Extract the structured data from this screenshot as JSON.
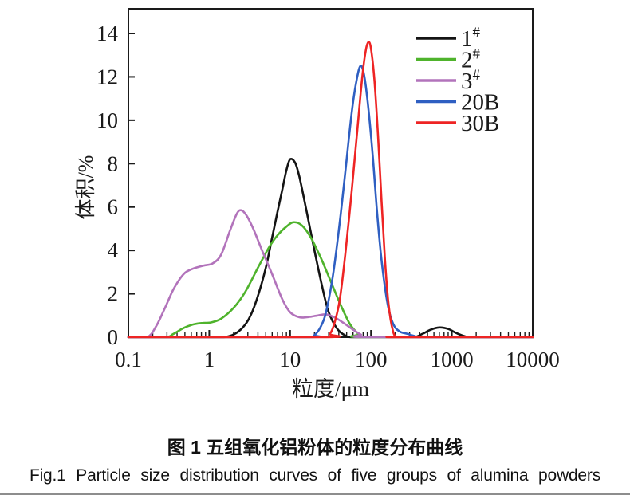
{
  "caption": {
    "chinese": "图 1  五组氧化铝粉体的粒度分布曲线",
    "english": "Fig.1  Particle  size  distribution  curves  of  five  groups  of  alumina  powders"
  },
  "colors": {
    "axis": "#1a1a1a",
    "black_series": "#141414",
    "green_series": "#4fb32c",
    "purple_series": "#b273bb",
    "blue_series": "#2f5fc2",
    "red_series": "#ee2424"
  },
  "chart_data": {
    "type": "line",
    "title": "",
    "xlabel": "粒度/μm",
    "ylabel": "体积/%",
    "x_scale": "log",
    "xlim": [
      0.1,
      10000
    ],
    "ylim": [
      0,
      15.1
    ],
    "grid": false,
    "legend_position": "top-right-inside",
    "x_ticks": [
      0.1,
      1,
      10,
      100,
      1000,
      10000
    ],
    "x_tick_labels": [
      "0.1",
      "1",
      "10",
      "100",
      "1000",
      "10000"
    ],
    "y_ticks": [
      0,
      2,
      4,
      6,
      8,
      10,
      12,
      14
    ],
    "y_tick_labels": [
      "0",
      "2",
      "4",
      "6",
      "8",
      "10",
      "12",
      "14"
    ],
    "series": [
      {
        "name": "1#",
        "key": "1",
        "label_base": "1",
        "label_sup": "#",
        "color": "#141414",
        "points": [
          [
            0.1,
            0
          ],
          [
            0.9,
            0
          ],
          [
            1.5,
            0
          ],
          [
            2,
            0.12
          ],
          [
            2.6,
            0.45
          ],
          [
            3.2,
            0.95
          ],
          [
            4,
            1.9
          ],
          [
            5,
            3.2
          ],
          [
            6,
            4.6
          ],
          [
            7,
            5.8
          ],
          [
            8,
            6.8
          ],
          [
            9,
            7.7
          ],
          [
            10,
            8.2
          ],
          [
            11.5,
            8.05
          ],
          [
            13,
            7.4
          ],
          [
            16,
            5.8
          ],
          [
            20,
            4.0
          ],
          [
            25,
            2.3
          ],
          [
            30,
            1.15
          ],
          [
            38,
            0.4
          ],
          [
            48,
            0.08
          ],
          [
            60,
            0
          ],
          [
            150,
            0
          ],
          [
            330,
            0
          ],
          [
            430,
            0.15
          ],
          [
            550,
            0.35
          ],
          [
            700,
            0.45
          ],
          [
            900,
            0.38
          ],
          [
            1150,
            0.18
          ],
          [
            1450,
            0.04
          ],
          [
            1800,
            0
          ],
          [
            10000,
            0
          ]
        ]
      },
      {
        "name": "2#",
        "key": "2",
        "label_base": "2",
        "label_sup": "#",
        "color": "#4fb32c",
        "points": [
          [
            0.1,
            0
          ],
          [
            0.28,
            0
          ],
          [
            0.36,
            0.15
          ],
          [
            0.48,
            0.42
          ],
          [
            0.62,
            0.58
          ],
          [
            0.8,
            0.65
          ],
          [
            1.05,
            0.68
          ],
          [
            1.4,
            0.85
          ],
          [
            2,
            1.35
          ],
          [
            2.8,
            2.1
          ],
          [
            4,
            3.2
          ],
          [
            5.5,
            4.15
          ],
          [
            7,
            4.7
          ],
          [
            9,
            5.1
          ],
          [
            11,
            5.3
          ],
          [
            14,
            5.15
          ],
          [
            18,
            4.6
          ],
          [
            24,
            3.65
          ],
          [
            32,
            2.55
          ],
          [
            42,
            1.5
          ],
          [
            55,
            0.6
          ],
          [
            70,
            0.15
          ],
          [
            85,
            0
          ],
          [
            10000,
            0
          ]
        ]
      },
      {
        "name": "3#",
        "key": "3",
        "label_base": "3",
        "label_sup": "#",
        "color": "#b273bb",
        "points": [
          [
            0.1,
            0
          ],
          [
            0.17,
            0
          ],
          [
            0.22,
            0.5
          ],
          [
            0.28,
            1.3
          ],
          [
            0.36,
            2.2
          ],
          [
            0.48,
            2.9
          ],
          [
            0.62,
            3.15
          ],
          [
            0.85,
            3.3
          ],
          [
            1.1,
            3.4
          ],
          [
            1.4,
            3.8
          ],
          [
            1.8,
            4.9
          ],
          [
            2.2,
            5.7
          ],
          [
            2.5,
            5.85
          ],
          [
            2.9,
            5.6
          ],
          [
            3.5,
            5.0
          ],
          [
            4.5,
            4.0
          ],
          [
            6,
            2.9
          ],
          [
            8,
            1.75
          ],
          [
            10,
            1.15
          ],
          [
            13,
            0.92
          ],
          [
            17,
            0.93
          ],
          [
            22,
            1.0
          ],
          [
            28,
            1.05
          ],
          [
            36,
            0.9
          ],
          [
            46,
            0.65
          ],
          [
            60,
            0.35
          ],
          [
            75,
            0.12
          ],
          [
            92,
            0
          ],
          [
            10000,
            0
          ]
        ]
      },
      {
        "name": "20B",
        "key": "20B",
        "label_base": "20B",
        "label_sup": "",
        "color": "#2f5fc2",
        "points": [
          [
            0.1,
            0
          ],
          [
            16,
            0
          ],
          [
            20,
            0.1
          ],
          [
            24,
            0.5
          ],
          [
            28,
            1.2
          ],
          [
            34,
            2.9
          ],
          [
            42,
            5.6
          ],
          [
            50,
            8.2
          ],
          [
            58,
            10.4
          ],
          [
            66,
            11.8
          ],
          [
            74,
            12.5
          ],
          [
            82,
            12.1
          ],
          [
            92,
            10.7
          ],
          [
            105,
            8.4
          ],
          [
            118,
            5.9
          ],
          [
            132,
            3.9
          ],
          [
            150,
            2.2
          ],
          [
            170,
            1.1
          ],
          [
            195,
            0.5
          ],
          [
            230,
            0.25
          ],
          [
            285,
            0.15
          ],
          [
            350,
            0.05
          ],
          [
            430,
            0
          ],
          [
            10000,
            0
          ]
        ]
      },
      {
        "name": "30B",
        "key": "30B",
        "label_base": "30B",
        "label_sup": "",
        "color": "#ee2424",
        "points": [
          [
            0.1,
            0
          ],
          [
            26,
            0
          ],
          [
            31,
            0.15
          ],
          [
            35,
            0.6
          ],
          [
            41,
            1.7
          ],
          [
            48,
            3.8
          ],
          [
            58,
            6.8
          ],
          [
            68,
            9.6
          ],
          [
            78,
            12.0
          ],
          [
            86,
            13.2
          ],
          [
            93,
            13.6
          ],
          [
            100,
            13.3
          ],
          [
            110,
            11.9
          ],
          [
            122,
            9.3
          ],
          [
            135,
            6.3
          ],
          [
            148,
            3.7
          ],
          [
            162,
            1.8
          ],
          [
            175,
            0.8
          ],
          [
            188,
            0.25
          ],
          [
            198,
            0.05
          ],
          [
            210,
            0
          ],
          [
            10000,
            0
          ]
        ]
      }
    ]
  }
}
